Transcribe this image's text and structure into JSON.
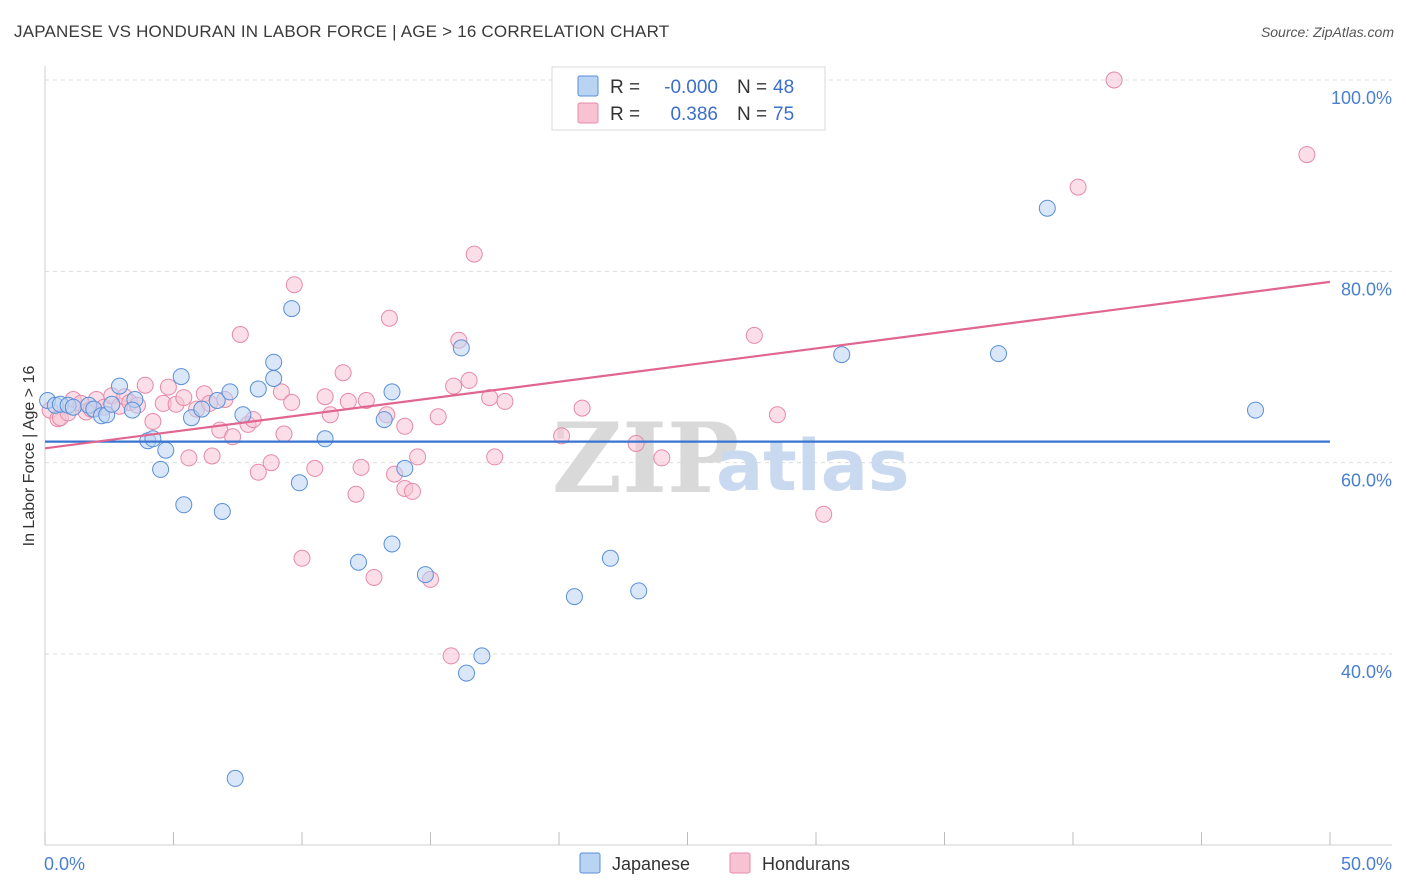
{
  "title": "JAPANESE VS HONDURAN IN LABOR FORCE | AGE > 16 CORRELATION CHART",
  "source": "Source: ZipAtlas.com",
  "watermark": {
    "zip": "ZIP",
    "atlas": "atlas"
  },
  "colors": {
    "japanese_fill": "#b9d3f3",
    "japanese_stroke": "#5a8fd8",
    "japanese_line": "#3a74d0",
    "honduran_fill": "#f7c3d3",
    "honduran_stroke": "#e78aa8",
    "honduran_line": "#e06690",
    "grid": "#dcdcdc",
    "axis_tick_text": "#4a7fd0"
  },
  "stats_legend": [
    {
      "r_label": "R =",
      "r_value": "-0.000",
      "n_label": "N =",
      "n_value": "48"
    },
    {
      "r_label": "R =",
      "r_value": "0.386",
      "n_label": "N =",
      "n_value": "75"
    }
  ],
  "chart_data": {
    "type": "scatter",
    "title": "JAPANESE VS HONDURAN IN LABOR FORCE | AGE > 16 CORRELATION CHART",
    "xlabel": "",
    "ylabel": "In Labor Force | Age > 16",
    "xlim": [
      0,
      50
    ],
    "ylim": [
      20,
      104
    ],
    "x_tick_labels": [
      "0.0%",
      "50.0%"
    ],
    "y_ticks": [
      40,
      60,
      80,
      100
    ],
    "y_tick_labels": [
      "40.0%",
      "60.0%",
      "80.0%",
      "100.0%"
    ],
    "grid": true,
    "legend_position": "bottom-center",
    "series": [
      {
        "name": "Japanese",
        "trend": {
          "x0": 0,
          "y0": 62.2,
          "x1": 50,
          "y1": 62.2
        },
        "points": [
          [
            0.1,
            66.5
          ],
          [
            0.4,
            66
          ],
          [
            0.6,
            66.1
          ],
          [
            0.9,
            66
          ],
          [
            1.1,
            65.8
          ],
          [
            1.7,
            66
          ],
          [
            1.9,
            65.6
          ],
          [
            2.2,
            64.9
          ],
          [
            2.4,
            65
          ],
          [
            2.6,
            66.1
          ],
          [
            2.9,
            68
          ],
          [
            3.5,
            66.6
          ],
          [
            3.4,
            65.5
          ],
          [
            4.0,
            62.3
          ],
          [
            4.2,
            62.5
          ],
          [
            4.5,
            59.3
          ],
          [
            4.7,
            61.3
          ],
          [
            5.3,
            69
          ],
          [
            5.4,
            55.6
          ],
          [
            5.7,
            64.7
          ],
          [
            6.1,
            65.6
          ],
          [
            6.7,
            66.5
          ],
          [
            6.9,
            54.9
          ],
          [
            7.2,
            67.4
          ],
          [
            7.7,
            65
          ],
          [
            7.4,
            27
          ],
          [
            8.3,
            67.7
          ],
          [
            8.9,
            68.8
          ],
          [
            8.9,
            70.5
          ],
          [
            9.6,
            76.1
          ],
          [
            9.9,
            57.9
          ],
          [
            10.9,
            62.5
          ],
          [
            12.2,
            49.6
          ],
          [
            13.2,
            64.5
          ],
          [
            13.5,
            67.4
          ],
          [
            14.0,
            59.4
          ],
          [
            14.8,
            48.3
          ],
          [
            16.2,
            72
          ],
          [
            16.4,
            38
          ],
          [
            17.0,
            39.8
          ],
          [
            20.6,
            46
          ],
          [
            22.0,
            50
          ],
          [
            23.1,
            46.6
          ],
          [
            31.0,
            71.3
          ],
          [
            37.1,
            71.4
          ],
          [
            39.0,
            86.6
          ],
          [
            47.1,
            65.5
          ],
          [
            13.5,
            51.5
          ]
        ]
      },
      {
        "name": "Hondurans",
        "trend": {
          "x0": 0,
          "y0": 61.5,
          "x1": 50,
          "y1": 78.9
        },
        "points": [
          [
            0.2,
            65.5
          ],
          [
            0.5,
            64.6
          ],
          [
            0.6,
            64.7
          ],
          [
            0.9,
            65.2
          ],
          [
            1.1,
            66.6
          ],
          [
            1.4,
            66.2
          ],
          [
            1.6,
            65.3
          ],
          [
            1.8,
            65.6
          ],
          [
            2.0,
            66.6
          ],
          [
            2.3,
            65.8
          ],
          [
            2.6,
            67
          ],
          [
            2.9,
            65.9
          ],
          [
            3.1,
            66.9
          ],
          [
            3.3,
            66.3
          ],
          [
            3.6,
            66
          ],
          [
            3.9,
            68.1
          ],
          [
            4.2,
            64.3
          ],
          [
            4.6,
            66.2
          ],
          [
            4.8,
            67.9
          ],
          [
            5.1,
            66.1
          ],
          [
            5.4,
            66.8
          ],
          [
            5.6,
            60.5
          ],
          [
            5.9,
            65.6
          ],
          [
            6.2,
            67.2
          ],
          [
            6.5,
            60.7
          ],
          [
            6.8,
            63.4
          ],
          [
            7.0,
            66.6
          ],
          [
            7.3,
            62.7
          ],
          [
            7.6,
            73.4
          ],
          [
            7.9,
            64
          ],
          [
            8.1,
            64.5
          ],
          [
            8.3,
            59
          ],
          [
            8.8,
            60
          ],
          [
            9.2,
            67.4
          ],
          [
            9.6,
            66.3
          ],
          [
            9.7,
            78.6
          ],
          [
            10.0,
            50
          ],
          [
            10.5,
            59.4
          ],
          [
            10.9,
            66.9
          ],
          [
            11.1,
            65
          ],
          [
            11.6,
            69.4
          ],
          [
            11.8,
            66.4
          ],
          [
            12.1,
            56.7
          ],
          [
            12.3,
            59.5
          ],
          [
            12.5,
            66.5
          ],
          [
            12.8,
            48
          ],
          [
            13.3,
            65
          ],
          [
            13.4,
            75.1
          ],
          [
            13.6,
            58.8
          ],
          [
            14.0,
            57.3
          ],
          [
            14.3,
            57
          ],
          [
            14.5,
            60.6
          ],
          [
            15.0,
            47.8
          ],
          [
            15.3,
            64.8
          ],
          [
            15.8,
            39.8
          ],
          [
            15.9,
            68
          ],
          [
            16.1,
            72.8
          ],
          [
            16.5,
            68.6
          ],
          [
            16.7,
            81.8
          ],
          [
            17.3,
            66.8
          ],
          [
            17.5,
            60.6
          ],
          [
            17.9,
            66.4
          ],
          [
            20.1,
            62.8
          ],
          [
            20.9,
            65.7
          ],
          [
            23.0,
            62
          ],
          [
            24.0,
            60.5
          ],
          [
            27.6,
            73.3
          ],
          [
            28.5,
            65
          ],
          [
            30.3,
            54.6
          ],
          [
            40.2,
            88.8
          ],
          [
            41.6,
            100
          ],
          [
            49.1,
            92.2
          ],
          [
            14.0,
            63.8
          ],
          [
            9.3,
            63
          ],
          [
            6.4,
            66.2
          ]
        ]
      }
    ]
  }
}
